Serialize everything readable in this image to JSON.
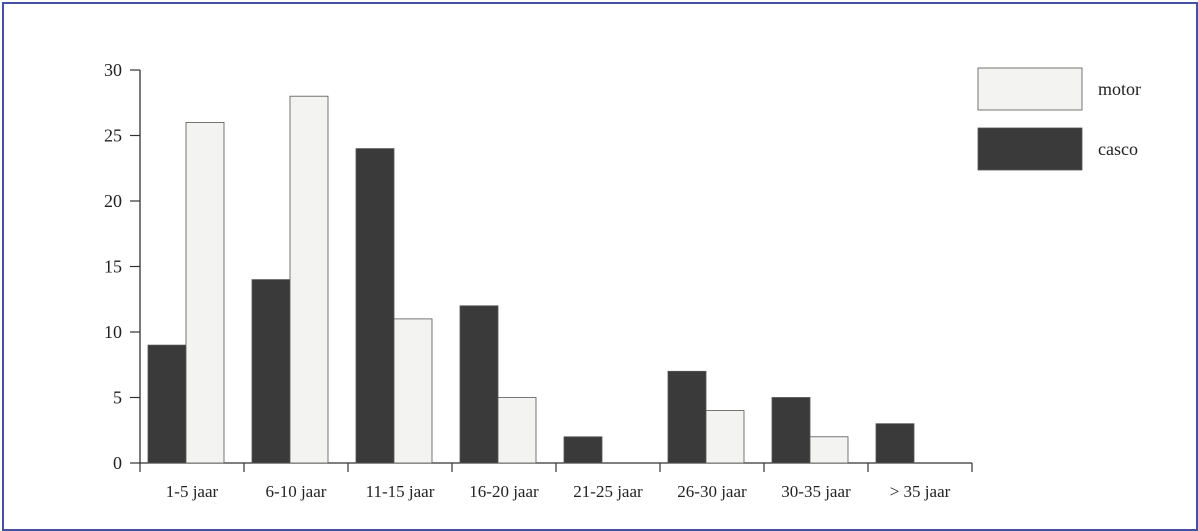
{
  "chart_data": {
    "type": "bar",
    "title": "",
    "xlabel": "",
    "ylabel": "",
    "ylim": [
      0,
      30
    ],
    "yticks": [
      0,
      5,
      10,
      15,
      20,
      25,
      30
    ],
    "categories": [
      "1-5 jaar",
      "6-10 jaar",
      "11-15 jaar",
      "16-20 jaar",
      "21-25 jaar",
      "26-30 jaar",
      "30-35 jaar",
      "> 35 jaar"
    ],
    "series": [
      {
        "name": "casco",
        "color": "#3a3a3a",
        "values": [
          9,
          14,
          24,
          12,
          2,
          7,
          5,
          3
        ]
      },
      {
        "name": "motor",
        "color": "#f3f3f1",
        "values": [
          26,
          28,
          11,
          5,
          0,
          4,
          2,
          0
        ]
      }
    ],
    "legend": {
      "placement": "top-right",
      "order": [
        "motor",
        "casco"
      ]
    },
    "grid": false
  }
}
